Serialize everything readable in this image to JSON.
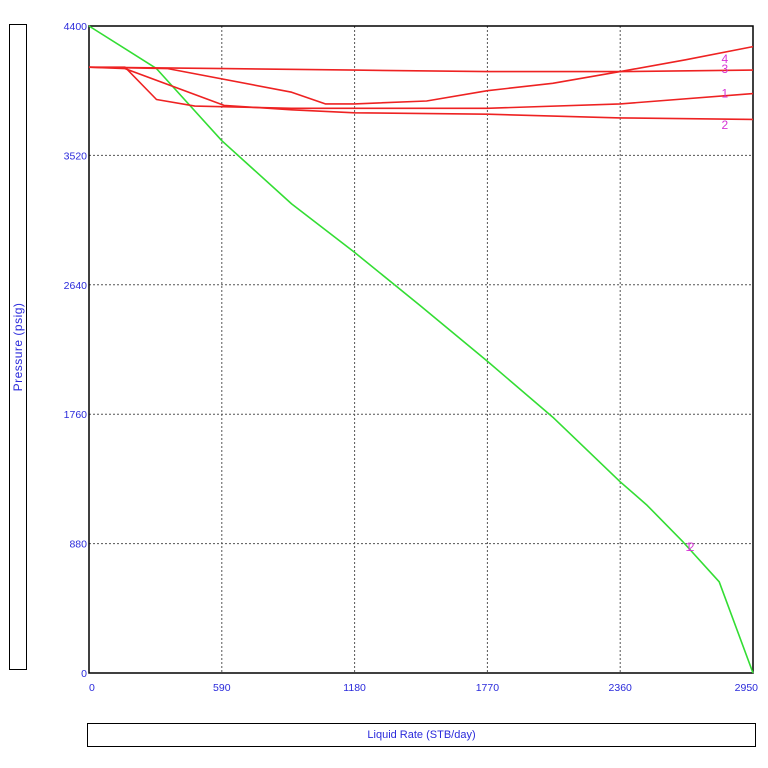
{
  "chart_data": {
    "type": "line",
    "title": "",
    "xlabel": "Liquid Rate (STB/day)",
    "ylabel": "Pressure (psig)",
    "xlim": [
      0,
      2950
    ],
    "ylim": [
      0,
      4400
    ],
    "x_ticks": [
      "0",
      "590",
      "1180",
      "1770",
      "2360",
      "2950"
    ],
    "y_ticks": [
      "0",
      "880",
      "1760",
      "2640",
      "3520",
      "4400"
    ],
    "grid": true,
    "colors": {
      "ipr": "#33dd33",
      "vlp": "#ee2222",
      "axis_text": "#2a2adb",
      "curve_label": "#d633d6"
    },
    "series": [
      {
        "kind": "ipr",
        "points": [
          [
            0,
            4400
          ],
          [
            300,
            4110
          ],
          [
            590,
            3620
          ],
          [
            900,
            3190
          ],
          [
            1180,
            2860
          ],
          [
            1470,
            2500
          ],
          [
            1770,
            2120
          ],
          [
            2060,
            1740
          ],
          [
            2360,
            1300
          ],
          [
            2480,
            1140
          ],
          [
            2640,
            890
          ],
          [
            2800,
            620
          ],
          [
            2950,
            0
          ]
        ]
      },
      {
        "kind": "vlp",
        "label": "1",
        "points": [
          [
            0,
            4120
          ],
          [
            160,
            4120
          ],
          [
            300,
            3900
          ],
          [
            470,
            3855
          ],
          [
            900,
            3840
          ],
          [
            1180,
            3840
          ],
          [
            1770,
            3840
          ],
          [
            2360,
            3870
          ],
          [
            2950,
            3940
          ]
        ]
      },
      {
        "kind": "vlp",
        "label": "2",
        "points": [
          [
            0,
            4120
          ],
          [
            160,
            4110
          ],
          [
            600,
            3860
          ],
          [
            900,
            3830
          ],
          [
            1180,
            3810
          ],
          [
            1770,
            3800
          ],
          [
            2360,
            3775
          ],
          [
            2950,
            3765
          ]
        ]
      },
      {
        "kind": "vlp",
        "label": "3",
        "points": [
          [
            0,
            4120
          ],
          [
            350,
            4110
          ],
          [
            900,
            3950
          ],
          [
            1050,
            3870
          ],
          [
            1180,
            3870
          ],
          [
            1500,
            3890
          ],
          [
            1770,
            3960
          ],
          [
            2060,
            4010
          ],
          [
            2360,
            4090
          ],
          [
            2650,
            4170
          ],
          [
            2950,
            4260
          ]
        ]
      },
      {
        "kind": "vlp",
        "label": "4",
        "points": [
          [
            0,
            4120
          ],
          [
            600,
            4110
          ],
          [
            1180,
            4100
          ],
          [
            1770,
            4090
          ],
          [
            2360,
            4090
          ],
          [
            2950,
            4100
          ]
        ]
      }
    ],
    "curve_labels": [
      {
        "text": "1",
        "x": 2810,
        "y": 3915
      },
      {
        "text": "2",
        "x": 2810,
        "y": 3700
      },
      {
        "text": "3",
        "x": 2810,
        "y": 4080
      },
      {
        "text": "4",
        "x": 2810,
        "y": 4150
      },
      {
        "text": "1",
        "x": 2650,
        "y": 830
      },
      {
        "text": "2",
        "x": 2660,
        "y": 830
      }
    ]
  }
}
